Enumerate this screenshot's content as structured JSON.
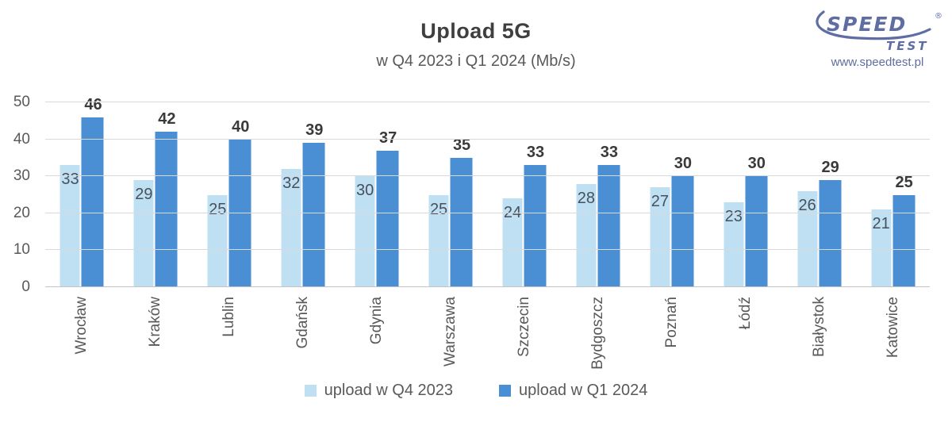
{
  "header": {
    "title": "Upload 5G",
    "subtitle": "w Q4 2023 i Q1 2024 (Mb/s)"
  },
  "logo": {
    "brand_top": "SPEED",
    "brand_bottom": "TEST",
    "registered": "®",
    "url": "www.speedtest.pl",
    "color": "#5f6da2"
  },
  "chart_data": {
    "type": "bar",
    "title": "Upload 5G",
    "subtitle": "w Q4 2023 i Q1 2024 (Mb/s)",
    "unit": "Mb/s",
    "categories": [
      "Wrocław",
      "Kraków",
      "Lublin",
      "Gdańsk",
      "Gdynia",
      "Warszawa",
      "Szczecin",
      "Bydgoszcz",
      "Poznań",
      "Łódź",
      "Białystok",
      "Katowice"
    ],
    "series": [
      {
        "name": "upload w Q4 2023",
        "color": "#bfe0f2",
        "values": [
          33,
          29,
          25,
          32,
          30,
          25,
          24,
          28,
          27,
          23,
          26,
          21
        ],
        "label_position": "inside-top"
      },
      {
        "name": "upload w Q1 2024",
        "color": "#4a8fd3",
        "values": [
          46,
          42,
          40,
          39,
          37,
          35,
          33,
          33,
          30,
          30,
          29,
          25
        ],
        "label_position": "above",
        "label_bold": true
      }
    ],
    "ylim": [
      0,
      50
    ],
    "yticks": [
      0,
      10,
      20,
      30,
      40,
      50
    ],
    "grid": true,
    "legend_position": "bottom",
    "colors": {
      "grid": "#d9d9d9",
      "axis": "#c3c3c3",
      "tick_text": "#595959",
      "value_text": "#47505c"
    }
  }
}
